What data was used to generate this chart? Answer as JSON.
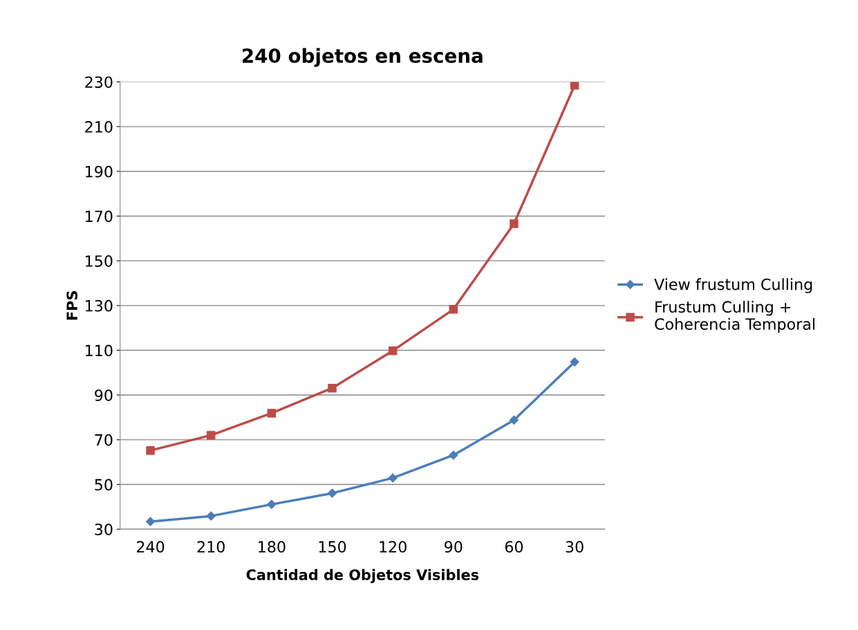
{
  "chart_data": {
    "type": "line",
    "title": "240 objetos en escena",
    "xlabel": "Cantidad de Objetos Visibles",
    "ylabel": "FPS",
    "categories": [
      "240",
      "210",
      "180",
      "150",
      "120",
      "90",
      "60",
      "30"
    ],
    "series": [
      {
        "name": "View frustum Culling",
        "color": "#4a7ebb",
        "marker": "diamond",
        "values": [
          33.4,
          35.9,
          41.1,
          46.1,
          52.9,
          63.1,
          78.8,
          104.8
        ]
      },
      {
        "name": "Frustum Culling +\nCoherencia Temporal",
        "color": "#be4b48",
        "marker": "square",
        "values": [
          65.2,
          72.0,
          81.9,
          93.1,
          109.8,
          128.3,
          166.6,
          228.5
        ]
      }
    ],
    "ylim": [
      30,
      230
    ],
    "yticks": [
      30,
      50,
      70,
      90,
      110,
      130,
      150,
      170,
      190,
      210,
      230
    ],
    "grid": "y",
    "legend": "right",
    "line_style": "solid"
  }
}
